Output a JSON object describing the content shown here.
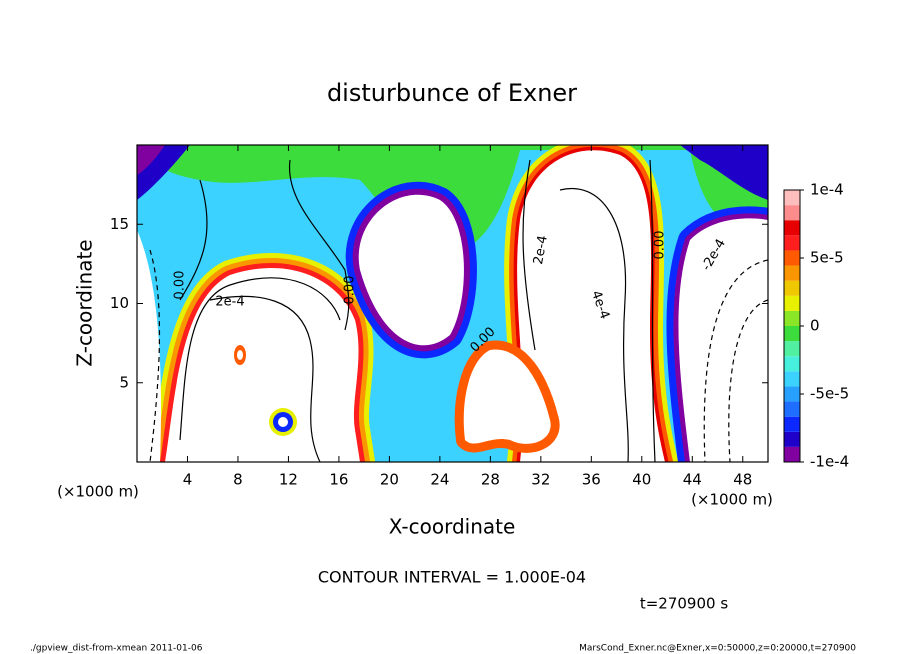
{
  "chart_data": {
    "type": "contour",
    "title": "disturbunce of Exner",
    "x_label": "X-coordinate",
    "y_label": "Z-coordinate",
    "x_unit": "(×1000 m)",
    "y_unit": "(×1000 m)",
    "xlim": [
      0,
      50
    ],
    "xticks": [
      4,
      8,
      12,
      16,
      20,
      24,
      28,
      32,
      36,
      40,
      44,
      48
    ],
    "ylim": [
      0,
      20
    ],
    "yticks": [
      5,
      10,
      15
    ],
    "colorbar": {
      "lim": [
        -0.0001,
        0.0001
      ],
      "ticks": [
        {
          "value": 0.0001,
          "label": "1e-4"
        },
        {
          "value": 5e-05,
          "label": "5e-5"
        },
        0,
        {
          "value": -5e-05,
          "label": "-5e-5"
        },
        {
          "value": -0.0001,
          "label": "-1e-4"
        }
      ],
      "colors": [
        "#8000a0",
        "#1e00c8",
        "#0a28ff",
        "#1e6eff",
        "#28a0ff",
        "#3cd2ff",
        "#46f0dc",
        "#50f0a0",
        "#3cdc3c",
        "#8ce628",
        "#e6f000",
        "#f0c800",
        "#fa9600",
        "#ff5a00",
        "#ff1e1e",
        "#e60000",
        "#ff8c8c",
        "#ffbebe"
      ]
    },
    "contour_labels": [
      "0.00",
      "2e-4",
      "0.00",
      "0.00",
      "2e-4",
      "4e-4",
      "0.00",
      "-2e-4"
    ],
    "contour_interval": "CONTOUR INTERVAL = 1.000E-04",
    "time": "t=270900 s"
  },
  "footer": {
    "left": "./gpview_dist-from-xmean  2011-01-06",
    "right": "MarsCond_Exner.nc@Exner,x=0:50000,z=0:20000,t=270900"
  }
}
